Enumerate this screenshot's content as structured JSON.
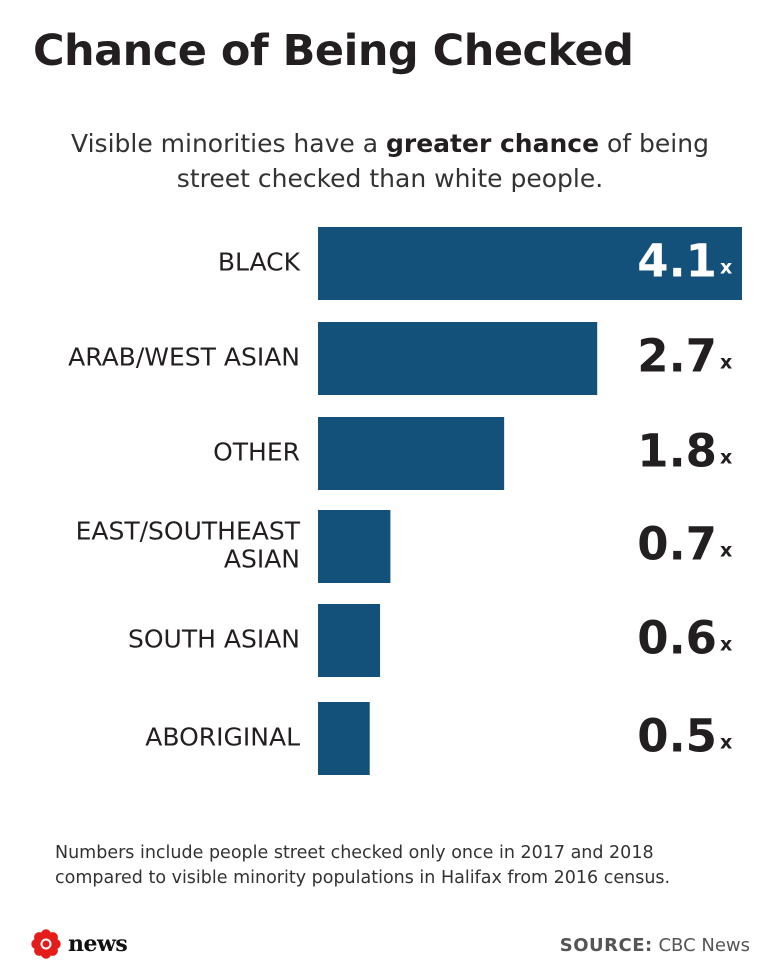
{
  "header": {
    "title": "Chance of Being Checked",
    "subtitle_pre": "Visible minorities have a ",
    "subtitle_bold": "greater chance",
    "subtitle_post": " of being street checked than white people."
  },
  "chart_data": {
    "type": "bar",
    "orientation": "horizontal",
    "categories": [
      "BLACK",
      "ARAB/WEST ASIAN",
      "OTHER",
      "EAST/SOUTHEAST ASIAN",
      "SOUTH ASIAN",
      "ABORIGINAL"
    ],
    "values": [
      4.1,
      2.7,
      1.8,
      0.7,
      0.6,
      0.5
    ],
    "value_labels": [
      "4.1",
      "2.7",
      "1.8",
      "0.7",
      "0.6",
      "0.5"
    ],
    "value_suffix": "x",
    "xlim": [
      0,
      4.1
    ],
    "grid": false,
    "bar_color": "#13507a",
    "label_inside_color": "#ffffff",
    "label_outside_color": "#231f20"
  },
  "footer": {
    "note_line1": "Numbers include people street checked only once in 2017 and 2018",
    "note_line2": "compared to visible minority populations in Halifax from 2016 census.",
    "logo_text": "news",
    "source_label": "SOURCE:",
    "source_value": "CBC News",
    "logo_color": "#e41d1b"
  }
}
